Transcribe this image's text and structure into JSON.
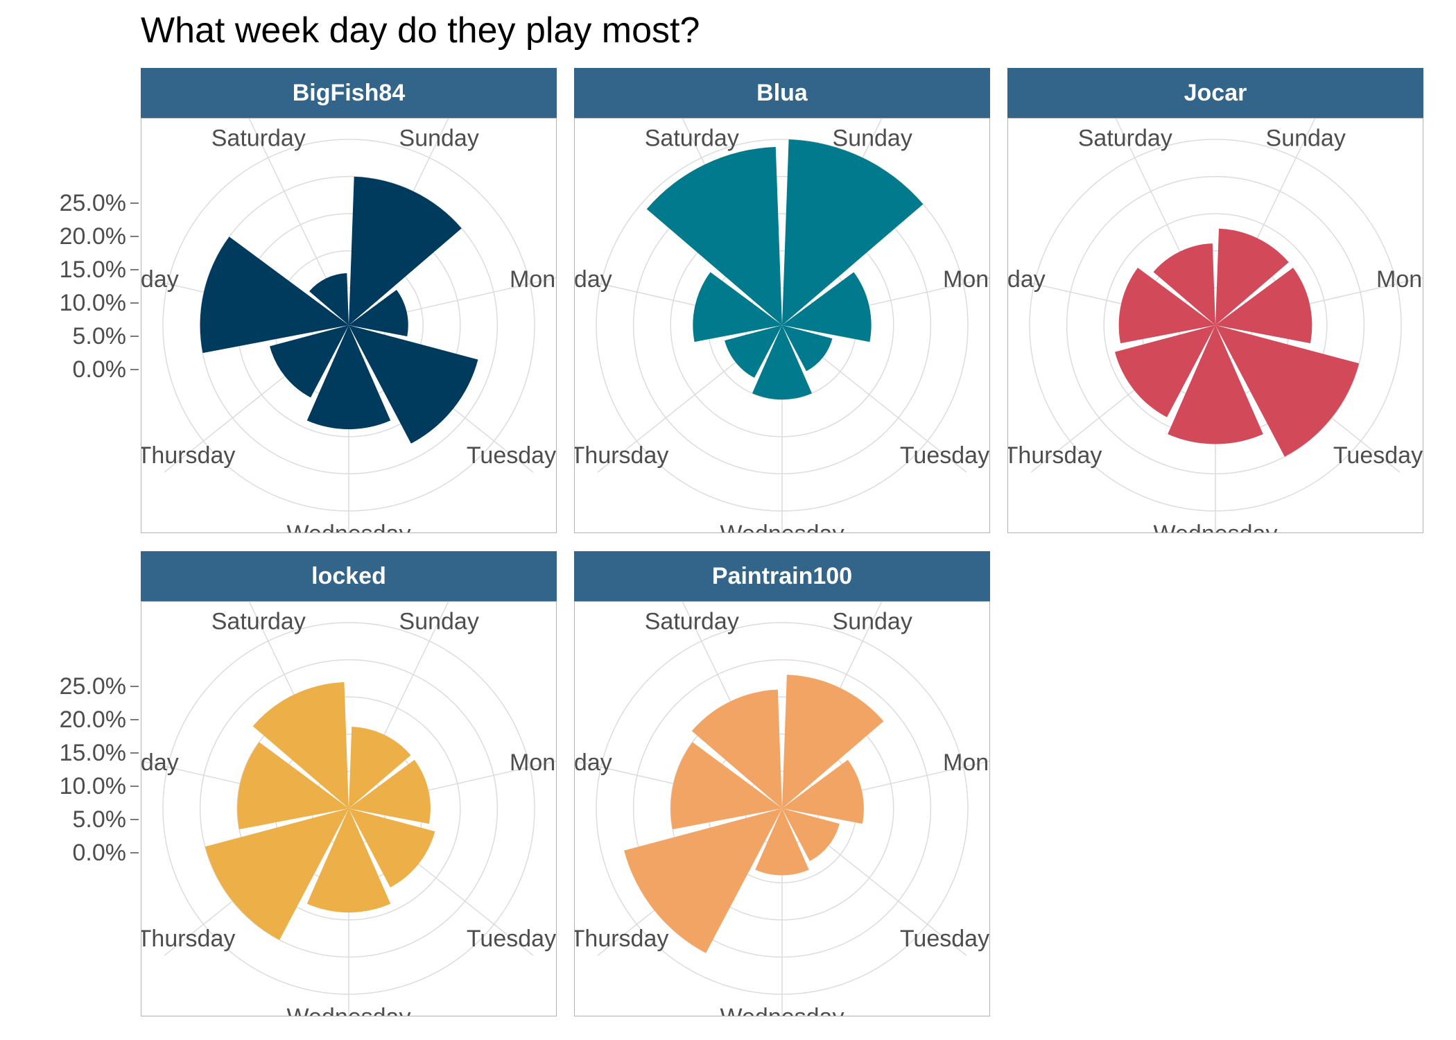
{
  "title": "What week day do they play most?",
  "chart_data": {
    "type": "polar-bar",
    "days": [
      "Sunday",
      "Monday",
      "Tuesday",
      "Wednesday",
      "Thursday",
      "Friday",
      "Saturday"
    ],
    "y_ticks": [
      "25.0%",
      "20.0%",
      "15.0%",
      "10.0%",
      "5.0%",
      "0.0%"
    ],
    "ylim": [
      0,
      0.25
    ],
    "panels": [
      {
        "name": "BigFish84",
        "color": "#003A5C",
        "values": [
          0.2,
          0.08,
          0.18,
          0.14,
          0.11,
          0.2,
          0.07
        ]
      },
      {
        "name": "Blua",
        "color": "#007A8C",
        "values": [
          0.25,
          0.12,
          0.07,
          0.1,
          0.08,
          0.12,
          0.24
        ]
      },
      {
        "name": "Jocar",
        "color": "#D2495A",
        "values": [
          0.13,
          0.13,
          0.2,
          0.16,
          0.14,
          0.13,
          0.11
        ]
      },
      {
        "name": "locked",
        "color": "#EDAF47",
        "values": [
          0.11,
          0.11,
          0.12,
          0.14,
          0.2,
          0.15,
          0.17
        ]
      },
      {
        "name": "Paintrain100",
        "color": "#F2A464",
        "values": [
          0.18,
          0.11,
          0.08,
          0.09,
          0.22,
          0.15,
          0.16
        ]
      }
    ]
  }
}
